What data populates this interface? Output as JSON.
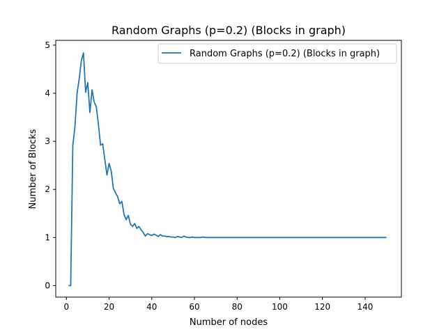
{
  "chart_data": {
    "type": "line",
    "title": "Random Graphs (p=0.2) (Blocks in graph)",
    "xlabel": "Number of nodes",
    "ylabel": "Number of Blocks",
    "xlim": [
      -5,
      157
    ],
    "ylim": [
      -0.24,
      5.1
    ],
    "xticks": [
      0,
      20,
      40,
      60,
      80,
      100,
      120,
      140
    ],
    "yticks": [
      0,
      1,
      2,
      3,
      4,
      5
    ],
    "grid": false,
    "legend_position": "top-right",
    "series": [
      {
        "name": "Random Graphs (p=0.2) (Blocks in graph)",
        "color": "#1f77b4",
        "x": [
          1,
          2,
          3,
          4,
          5,
          6,
          7,
          8,
          9,
          10,
          11,
          12,
          13,
          14,
          15,
          16,
          17,
          18,
          19,
          20,
          21,
          22,
          23,
          24,
          25,
          26,
          27,
          28,
          29,
          30,
          31,
          32,
          33,
          34,
          35,
          36,
          37,
          38,
          39,
          40,
          41,
          42,
          43,
          44,
          45,
          46,
          47,
          48,
          49,
          50,
          51,
          52,
          53,
          54,
          55,
          56,
          57,
          58,
          59,
          60,
          61,
          62,
          63,
          64,
          65,
          66,
          67,
          68,
          69,
          70,
          75,
          80,
          85,
          90,
          95,
          100,
          105,
          110,
          115,
          120,
          125,
          130,
          135,
          140,
          145,
          150
        ],
        "y": [
          0,
          0,
          2.92,
          3.3,
          4.0,
          4.3,
          4.68,
          4.84,
          4.02,
          4.22,
          3.6,
          4.07,
          3.82,
          3.72,
          3.35,
          2.92,
          2.95,
          2.62,
          2.3,
          2.54,
          2.38,
          2.02,
          1.93,
          1.85,
          1.7,
          1.75,
          1.48,
          1.37,
          1.46,
          1.28,
          1.23,
          1.29,
          1.19,
          1.23,
          1.16,
          1.1,
          1.03,
          1.08,
          1.06,
          1.04,
          1.07,
          1.05,
          1.02,
          1.06,
          1.03,
          1.03,
          1.02,
          1.02,
          1.01,
          1.01,
          1.0,
          1.02,
          1.01,
          1.0,
          1.03,
          1.01,
          1.0,
          1.0,
          1.01,
          1.0,
          1.0,
          1.0,
          1.0,
          1.01,
          1.0,
          1.0,
          1.0,
          1.0,
          1.0,
          1.0,
          1.0,
          1.0,
          1.0,
          1.0,
          1.0,
          1.0,
          1.0,
          1.0,
          1.0,
          1.0,
          1.0,
          1.0,
          1.0,
          1.0,
          1.0,
          1.0
        ]
      }
    ]
  }
}
